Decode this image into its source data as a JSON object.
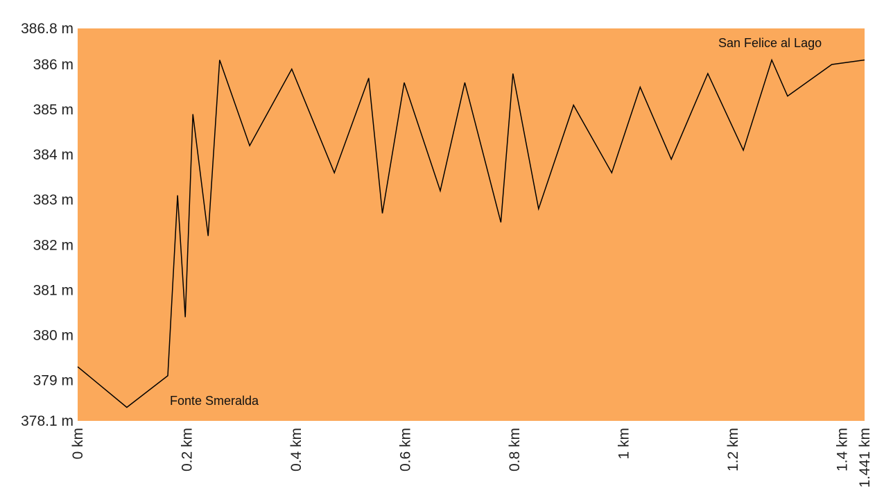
{
  "chart_data": {
    "type": "area",
    "title": "",
    "xlabel": "",
    "ylabel": "",
    "xlim": [
      0,
      1.441
    ],
    "ylim": [
      378.1,
      386.8
    ],
    "grid": false,
    "fill_color": "#FBA95B",
    "line_color": "#000000",
    "y_ticks": [
      {
        "value": 378.1,
        "label": "378.1 m"
      },
      {
        "value": 379,
        "label": "379 m"
      },
      {
        "value": 380,
        "label": "380 m"
      },
      {
        "value": 381,
        "label": "381 m"
      },
      {
        "value": 382,
        "label": "382 m"
      },
      {
        "value": 383,
        "label": "383 m"
      },
      {
        "value": 384,
        "label": "384 m"
      },
      {
        "value": 385,
        "label": "385 m"
      },
      {
        "value": 386,
        "label": "386 m"
      },
      {
        "value": 386.8,
        "label": "386.8 m"
      }
    ],
    "x_ticks": [
      {
        "value": 0,
        "label": "0 km"
      },
      {
        "value": 0.2,
        "label": "0.2 km"
      },
      {
        "value": 0.4,
        "label": "0.4 km"
      },
      {
        "value": 0.6,
        "label": "0.6 km"
      },
      {
        "value": 0.8,
        "label": "0.8 km"
      },
      {
        "value": 1.0,
        "label": "1 km"
      },
      {
        "value": 1.2,
        "label": "1.2 km"
      },
      {
        "value": 1.4,
        "label": "1.4 km"
      },
      {
        "value": 1.441,
        "label": "1.441 km"
      }
    ],
    "series": [
      {
        "x": [
          0,
          0.09,
          0.165,
          0.183,
          0.197,
          0.211,
          0.239,
          0.26,
          0.315,
          0.392,
          0.47,
          0.533,
          0.558,
          0.598,
          0.664,
          0.709,
          0.775,
          0.797,
          0.844,
          0.908,
          0.978,
          1.03,
          1.087,
          1.154,
          1.219,
          1.271,
          1.3,
          1.381,
          1.441
        ],
        "y": [
          379.3,
          378.4,
          379.1,
          383.1,
          380.4,
          384.9,
          382.2,
          386.1,
          384.2,
          385.9,
          383.6,
          385.7,
          382.7,
          385.6,
          383.2,
          385.6,
          382.5,
          385.8,
          382.8,
          385.1,
          383.6,
          385.5,
          383.9,
          385.8,
          384.1,
          386.1,
          385.3,
          386.0,
          386.1
        ]
      }
    ],
    "annotations": [
      {
        "text": "Fonte Smeralda",
        "x": 0.09,
        "y": 378.4
      },
      {
        "text": "San Felice al Lago",
        "x": 1.271,
        "y": 386.1
      }
    ]
  }
}
